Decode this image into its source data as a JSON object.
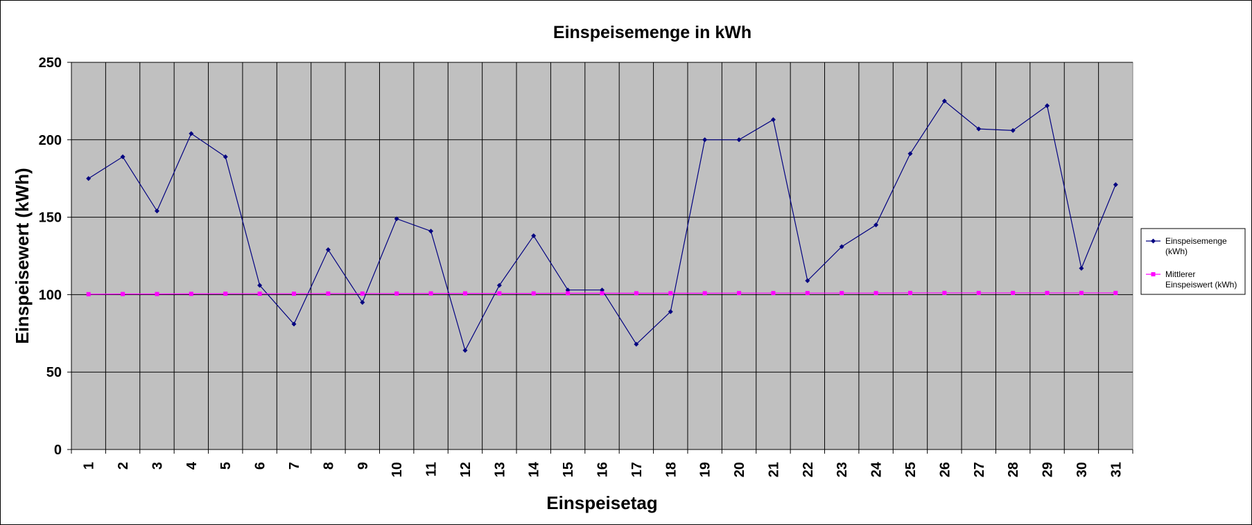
{
  "chart_data": {
    "type": "line",
    "title": "Einspeisemenge in kWh",
    "xlabel": "Einspeisetag",
    "ylabel": "Einspeisewert (kWh)",
    "ylim": [
      0,
      250
    ],
    "yticks": [
      0,
      50,
      100,
      150,
      200,
      250
    ],
    "grid": true,
    "legend_position": "right",
    "plot_background": "#c0c0c0",
    "categories": [
      "1",
      "2",
      "3",
      "4",
      "5",
      "6",
      "7",
      "8",
      "9",
      "10",
      "11",
      "12",
      "13",
      "14",
      "15",
      "16",
      "17",
      "18",
      "19",
      "20",
      "21",
      "22",
      "23",
      "24",
      "25",
      "26",
      "27",
      "28",
      "29",
      "30",
      "31"
    ],
    "series": [
      {
        "name": "Einspeisemenge (kWh)",
        "legend_lines": [
          "Einspeisemenge",
          "(kWh)"
        ],
        "color": "#000080",
        "marker": "diamond",
        "values": [
          175,
          189,
          154,
          204,
          189,
          106,
          81,
          129,
          95,
          149,
          141,
          64,
          106,
          138,
          103,
          103,
          68,
          89,
          200,
          200,
          213,
          109,
          131,
          145,
          191,
          225,
          207,
          206,
          222,
          117,
          171
        ]
      },
      {
        "name": "Mittlerer Einspeiswert (kWh)",
        "legend_lines": [
          "Mittlerer",
          "Einspeiswert (kWh)"
        ],
        "color": "#ff00ff",
        "marker": "square",
        "values": [
          100.3,
          100.4,
          100.4,
          100.5,
          100.6,
          100.6,
          100.6,
          100.7,
          100.7,
          100.7,
          100.8,
          100.8,
          100.8,
          100.8,
          100.9,
          100.9,
          100.9,
          100.9,
          100.9,
          101.0,
          101.0,
          101.0,
          101.0,
          101.0,
          101.1,
          101.1,
          101.1,
          101.1,
          101.1,
          101.1,
          101.1
        ]
      }
    ]
  }
}
